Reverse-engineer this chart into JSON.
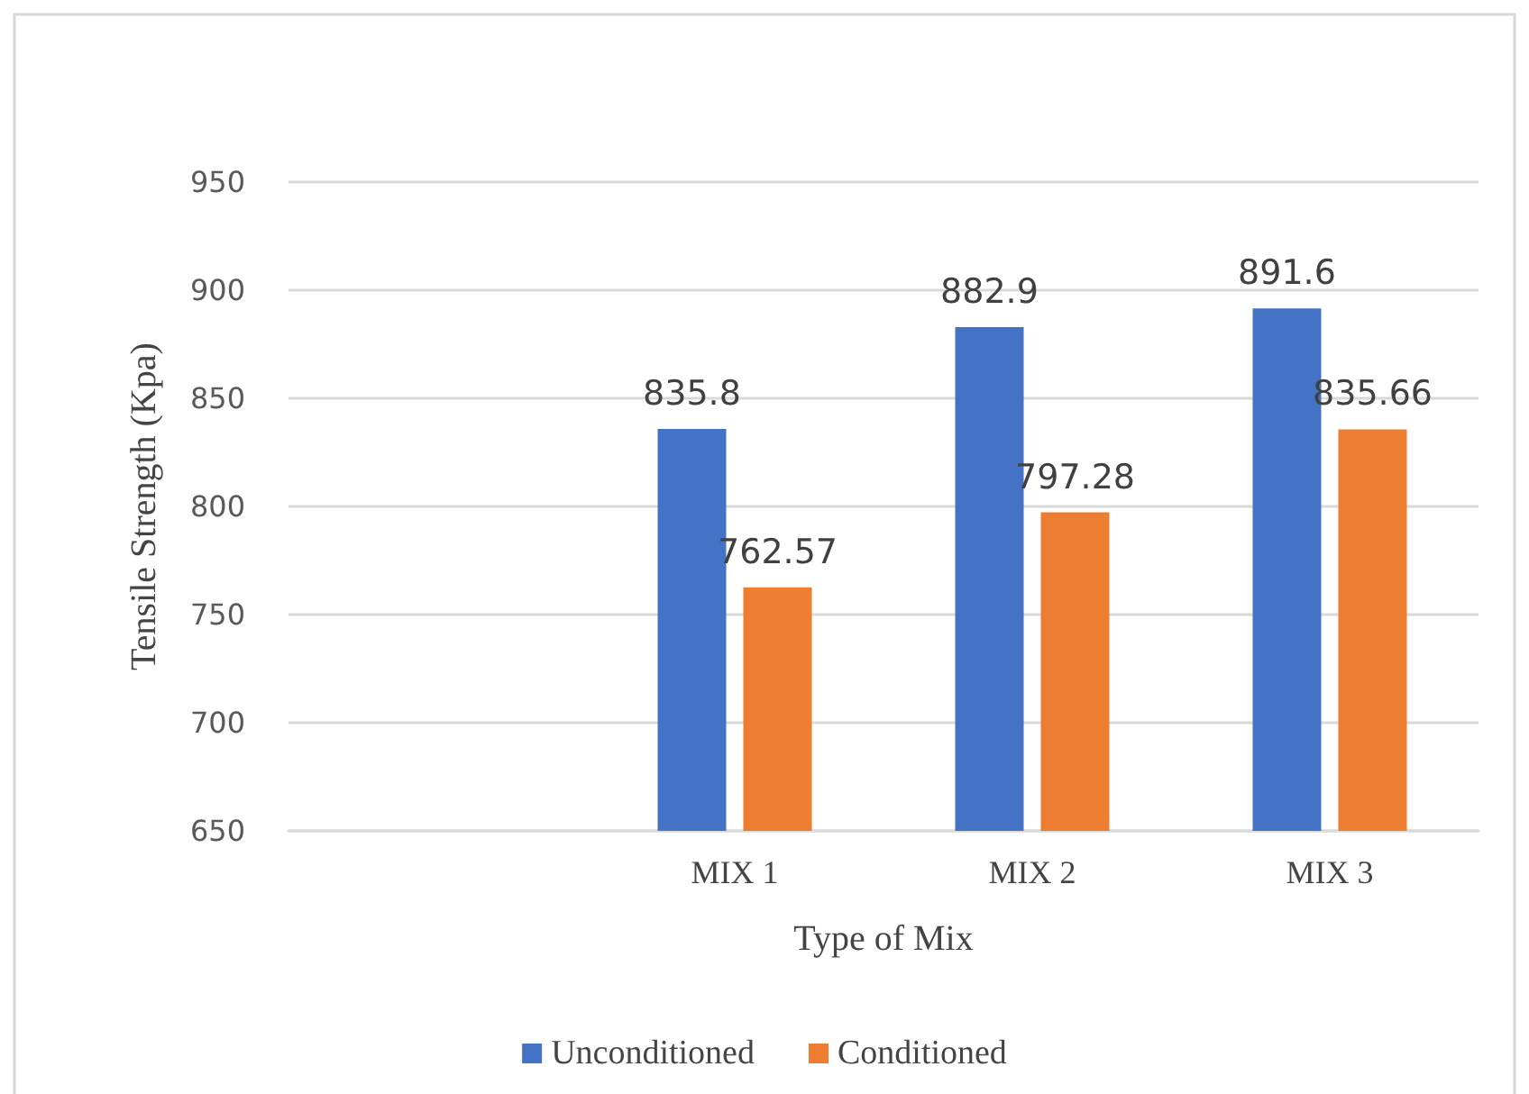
{
  "chart_data": {
    "type": "bar",
    "xlabel": "Type of Mix",
    "ylabel": "Tensile Strength (Kpa)",
    "categories": [
      null,
      "MIX 1",
      "MIX 2",
      "MIX 3"
    ],
    "series": [
      {
        "name": "Unconditioned",
        "color": "#4472c4",
        "values": [
          null,
          835.8,
          882.9,
          891.6
        ]
      },
      {
        "name": "Conditioned",
        "color": "#ed7d31",
        "values": [
          null,
          762.57,
          797.28,
          835.66
        ]
      }
    ],
    "ylim": [
      650,
      950
    ],
    "yticks": [
      650,
      700,
      750,
      800,
      850,
      900,
      950
    ],
    "grid": "y",
    "legend": "bottom",
    "data_labels": true
  }
}
